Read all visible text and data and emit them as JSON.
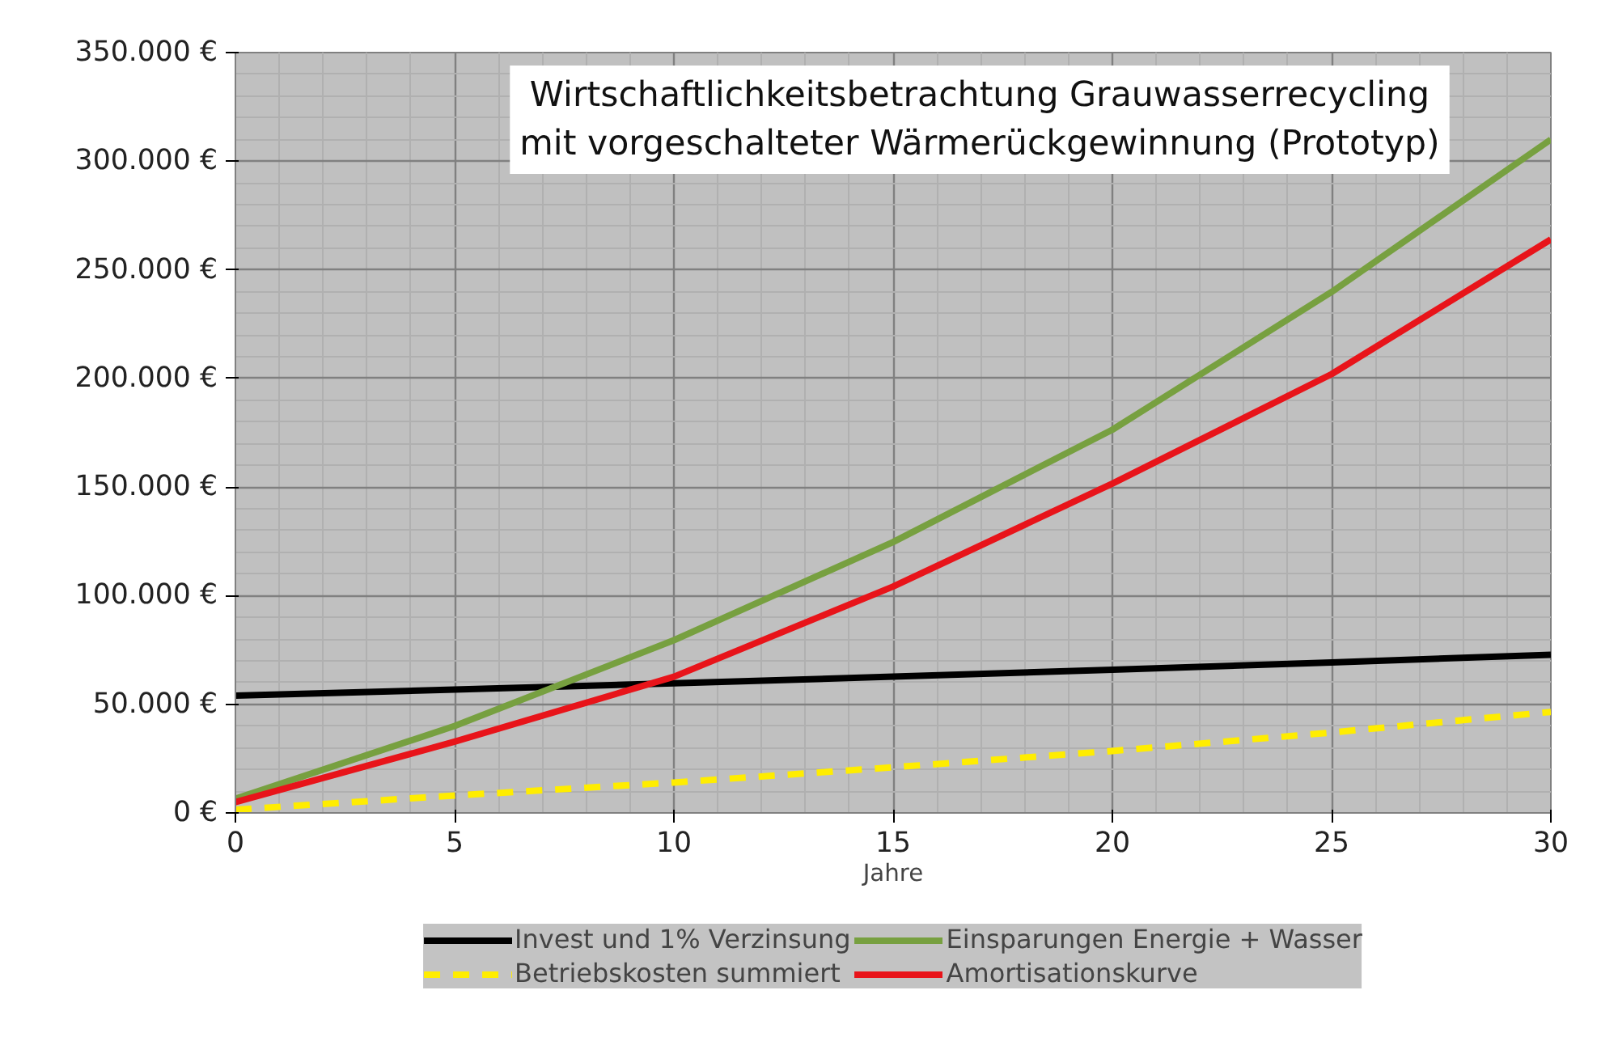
{
  "chart_data": {
    "type": "line",
    "title": "Wirtschaftlichkeitsbetrachtung Grauwasserrecycling\nmit vorgeschalteter Wärmerückgewinnung (Prototyp)",
    "xlabel": "Jahre",
    "x": [
      0,
      5,
      10,
      15,
      20,
      25,
      30
    ],
    "series": [
      {
        "name": "Invest und 1% Verzinsung",
        "color": "#000000",
        "values": [
          54000,
          56800,
          59700,
          62700,
          65900,
          69300,
          72800
        ]
      },
      {
        "name": "Betriebskosten summiert",
        "color": "#ffed00",
        "line_style": "dashed",
        "values": [
          1500,
          8000,
          14000,
          21000,
          28500,
          37000,
          46500
        ]
      },
      {
        "name": "Einsparungen Energie + Wasser",
        "color": "#77a040",
        "values": [
          6500,
          40000,
          79500,
          124700,
          176400,
          239800,
          310000
        ]
      },
      {
        "name": "Amortisationskurve",
        "color": "#e8141a",
        "values": [
          5000,
          32800,
          62700,
          104200,
          151600,
          202000,
          264000
        ]
      }
    ],
    "xlim": [
      0,
      30
    ],
    "xticks": [
      0,
      5,
      10,
      15,
      20,
      25,
      30
    ],
    "ylim": [
      0,
      350000
    ],
    "yticks": [
      {
        "value": 0,
        "label": "0 €"
      },
      {
        "value": 50000,
        "label": "50.000 €"
      },
      {
        "value": 100000,
        "label": "100.000 €"
      },
      {
        "value": 150000,
        "label": "150.000 €"
      },
      {
        "value": 200000,
        "label": "200.000 €"
      },
      {
        "value": 250000,
        "label": "250.000 €"
      },
      {
        "value": 300000,
        "label": "300.000 €"
      },
      {
        "value": 350000,
        "label": "350.000 €"
      }
    ],
    "grid": true,
    "legend": "bottom",
    "marker": "none"
  }
}
